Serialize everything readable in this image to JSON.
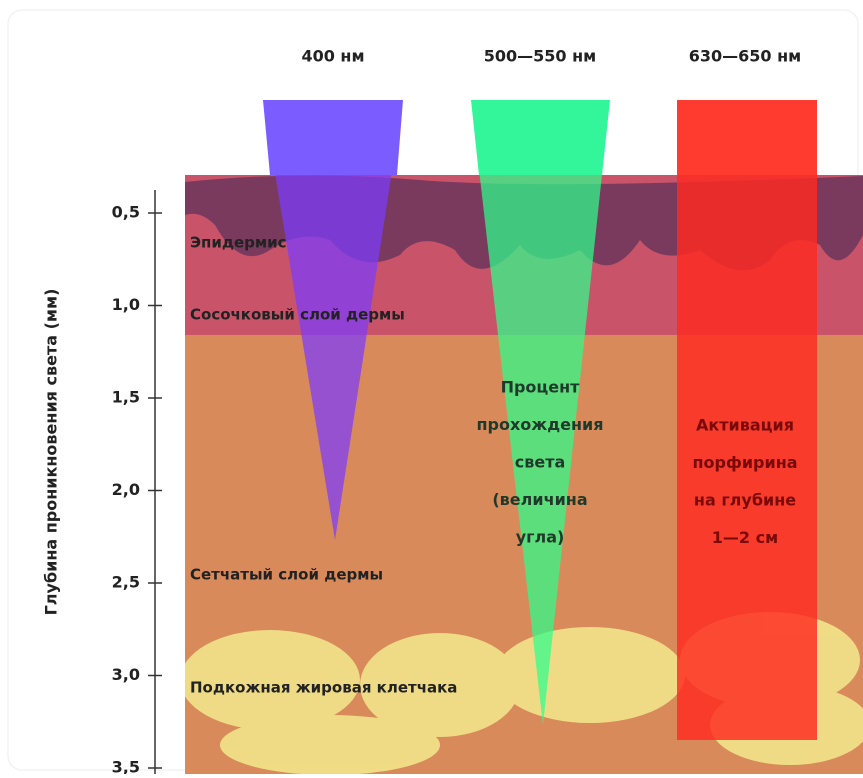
{
  "wavelengths": [
    "400 нм",
    "500—550 нм",
    "630—650 нм"
  ],
  "axis": {
    "title": "Глубина проникновения света (мм)",
    "ticks": [
      "0,5",
      "1,0",
      "1,5",
      "2,0",
      "2,5",
      "3,0",
      "3,5"
    ]
  },
  "layers": [
    "Эпидермис",
    "Сосочковый слой дермы",
    "Сетчатый слой дермы",
    "Подкожная жировая клетчака"
  ],
  "annotations": [
    {
      "lines": [
        "Процент",
        "прохождения",
        "света",
        "(величина",
        "угла)"
      ]
    },
    {
      "lines": [
        "Активация",
        "порфирина",
        "на глубине",
        "1—2 см"
      ]
    }
  ]
}
